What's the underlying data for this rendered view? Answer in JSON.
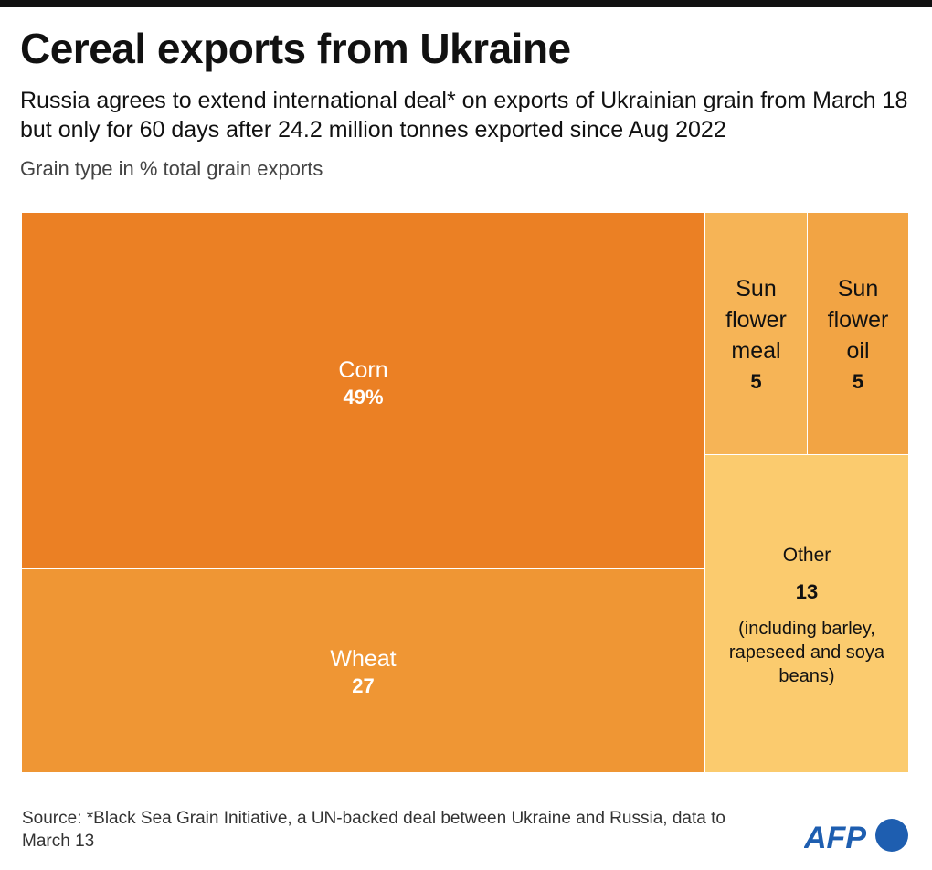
{
  "title": "Cereal exports from Ukraine",
  "subtitle": "Russia agrees to extend international deal* on exports of Ukrainian grain from March 18 but only for 60 days after 24.2 million tonnes exported since Aug 2022",
  "unit_label": "Grain type in % total grain exports",
  "chart_data": {
    "type": "treemap",
    "unit": "% total grain exports",
    "items": [
      {
        "label": "Corn",
        "value": 49,
        "value_label": "49%",
        "color": "#EB8024"
      },
      {
        "label": "Wheat",
        "value": 27,
        "value_label": "27",
        "color": "#EF9634"
      },
      {
        "label": "Sun flower meal",
        "value": 5,
        "value_label": "5",
        "color": "#F6B456"
      },
      {
        "label": "Sun flower oil",
        "value": 5,
        "value_label": "5",
        "color": "#F2A444"
      },
      {
        "label": "Other",
        "value": 13,
        "value_label": "13",
        "note": "(including barley, rapeseed and soya beans)",
        "color": "#FBCB6E"
      }
    ]
  },
  "source": "Source: *Black Sea Grain Initiative, a UN-backed deal between Ukraine and Russia, data to March 13",
  "logo": {
    "text": "AFP",
    "color": "#1E5EB0"
  }
}
